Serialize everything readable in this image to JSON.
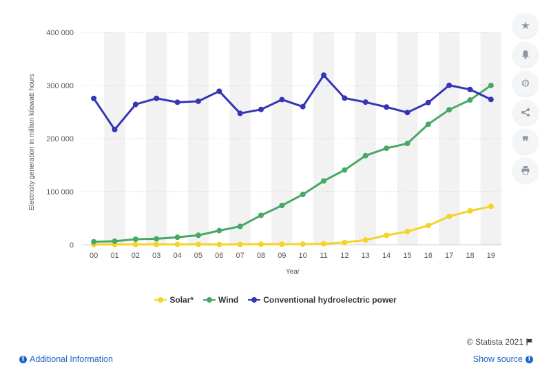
{
  "chart_data": {
    "type": "line",
    "ylabel": "Electricity generation in million kilowatt hours",
    "xlabel": "Year",
    "categories": [
      "00",
      "01",
      "02",
      "03",
      "04",
      "05",
      "06",
      "07",
      "08",
      "09",
      "10",
      "11",
      "12",
      "13",
      "14",
      "15",
      "16",
      "17",
      "18",
      "19"
    ],
    "ylim": [
      0,
      400000
    ],
    "yticks": [
      0,
      100000,
      200000,
      300000,
      400000
    ],
    "ytick_labels": [
      "0",
      "100 000",
      "200 000",
      "300 000",
      "400 000"
    ],
    "grid": true,
    "legend_position": "bottom-center",
    "series": [
      {
        "name": "Solar*",
        "color": "#f5d327",
        "values": [
          500,
          500,
          600,
          500,
          600,
          600,
          500,
          600,
          900,
          900,
          1200,
          1800,
          4300,
          9000,
          17700,
          24900,
          36100,
          53300,
          63800,
          72200
        ]
      },
      {
        "name": "Wind",
        "color": "#47a865",
        "values": [
          5600,
          6700,
          10400,
          11200,
          14100,
          17800,
          26600,
          34500,
          55400,
          73900,
          94700,
          120200,
          140800,
          167800,
          181700,
          190700,
          227000,
          254300,
          272700,
          300100
        ]
      },
      {
        "name": "Conventional hydroelectric power",
        "color": "#3535b5",
        "values": [
          275600,
          217000,
          264300,
          275800,
          268400,
          270300,
          289200,
          247500,
          254800,
          273400,
          260200,
          319400,
          276200,
          268600,
          259400,
          249100,
          267800,
          300300,
          292500,
          273700
        ]
      }
    ]
  },
  "footer": {
    "credit": "© Statista 2021",
    "additional_info": "Additional Information",
    "show_source": "Show source"
  },
  "toolbar": {
    "icons": [
      "star-icon",
      "bell-icon",
      "gear-icon",
      "share-icon",
      "quote-icon",
      "print-icon"
    ]
  }
}
